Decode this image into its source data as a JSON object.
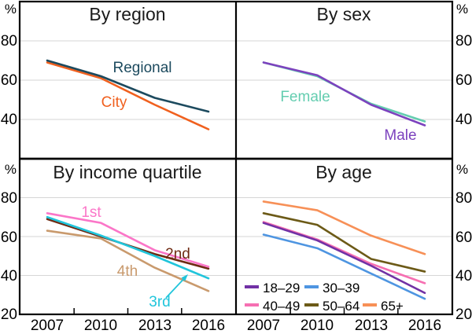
{
  "figure": {
    "percent_symbol": "%",
    "top_yticks": [
      "80",
      "60",
      "40"
    ],
    "bottom_yticks": [
      "80",
      "60",
      "40",
      "20"
    ]
  },
  "chart_data": [
    {
      "id": "region",
      "type": "line",
      "title": "By region",
      "x": [
        2007,
        2010,
        2013,
        2016
      ],
      "ylim": [
        20,
        100
      ],
      "yticks": [
        40,
        60,
        80
      ],
      "grid": true,
      "draw_order": [
        1,
        0
      ],
      "series": [
        {
          "name": "Regional",
          "color": "#1C4A5E",
          "values": [
            70,
            62,
            51,
            44
          ]
        },
        {
          "name": "City",
          "color": "#F0601E",
          "values": [
            69,
            61,
            47.5,
            35
          ]
        }
      ]
    },
    {
      "id": "sex",
      "type": "line",
      "title": "By sex",
      "x": [
        2007,
        2010,
        2013,
        2016
      ],
      "ylim": [
        20,
        100
      ],
      "yticks": [
        40,
        60,
        80
      ],
      "grid": true,
      "draw_order": [
        0,
        1
      ],
      "series": [
        {
          "name": "Female",
          "color": "#64CDB0",
          "values": [
            69,
            62,
            48,
            39
          ]
        },
        {
          "name": "Male",
          "color": "#7C42BE",
          "values": [
            69,
            62.5,
            47.5,
            37
          ]
        }
      ]
    },
    {
      "id": "income",
      "type": "line",
      "title": "By income quartile",
      "x": [
        2007,
        2010,
        2013,
        2016
      ],
      "ylim": [
        20,
        100
      ],
      "yticks": [
        40,
        60,
        80
      ],
      "grid": true,
      "draw_order": [
        3,
        1,
        2,
        0
      ],
      "series": [
        {
          "name": "1st",
          "color": "#FB76C8",
          "values": [
            72,
            67,
            53,
            44.5
          ]
        },
        {
          "name": "2nd",
          "color": "#6F2B13",
          "values": [
            69,
            60,
            51,
            43.5
          ]
        },
        {
          "name": "3rd",
          "color": "#21C5DB",
          "values": [
            70,
            60.5,
            50,
            38.5
          ]
        },
        {
          "name": "4th",
          "color": "#C99A6D",
          "values": [
            63,
            59,
            44,
            32
          ]
        }
      ]
    },
    {
      "id": "age",
      "type": "line",
      "title": "By age",
      "x": [
        2007,
        2010,
        2013,
        2016
      ],
      "ylim": [
        20,
        100
      ],
      "yticks": [
        40,
        60,
        80
      ],
      "grid": true,
      "legend_position": "bottom-left-inside",
      "draw_order": [
        2,
        0,
        1,
        3,
        4
      ],
      "series": [
        {
          "name": "18–29",
          "color": "#7131A5",
          "values": [
            67,
            58,
            45,
            31
          ]
        },
        {
          "name": "30–39",
          "color": "#4E95E1",
          "values": [
            61,
            54,
            41,
            28
          ]
        },
        {
          "name": "40–49",
          "color": "#F66FB2",
          "values": [
            67.5,
            58.5,
            46,
            36
          ]
        },
        {
          "name": "50–64",
          "color": "#6C5A17",
          "values": [
            72,
            66,
            48.5,
            42
          ]
        },
        {
          "name": "65+",
          "color": "#F79057",
          "values": [
            78,
            73.5,
            60.5,
            51
          ]
        }
      ]
    }
  ]
}
